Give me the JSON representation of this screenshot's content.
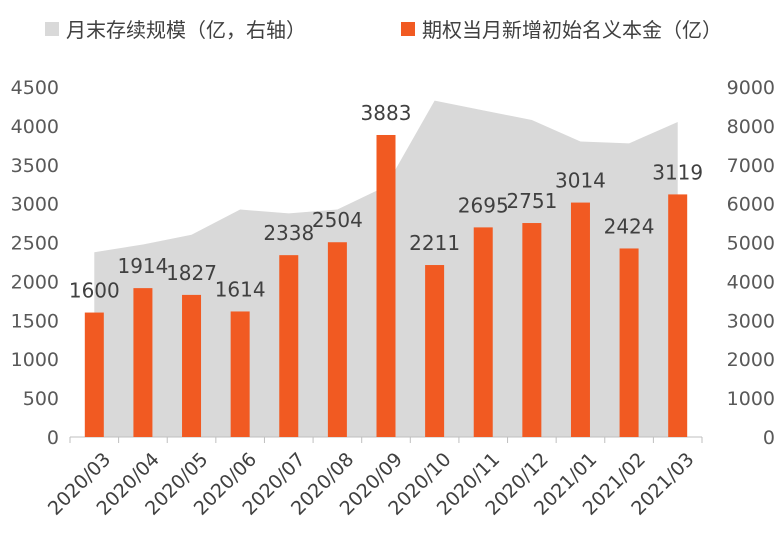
{
  "chart_data": {
    "type": "bar",
    "categories": [
      "2020/03",
      "2020/04",
      "2020/05",
      "2020/06",
      "2020/07",
      "2020/08",
      "2020/09",
      "2020/10",
      "2020/11",
      "2020/12",
      "2021/01",
      "2021/02",
      "2021/03"
    ],
    "series": [
      {
        "name": "期权当月新增初始名义本金（亿）",
        "type": "bar",
        "axis": "left",
        "color": "#F15A22",
        "values": [
          1600,
          1914,
          1827,
          1614,
          2338,
          2504,
          3883,
          2211,
          2695,
          2751,
          3014,
          2424,
          3119
        ]
      },
      {
        "name": "月末存续规模（亿，右轴）",
        "type": "area",
        "axis": "right",
        "color": "#D9D9D9",
        "values": [
          4750,
          4950,
          5200,
          5850,
          5750,
          5850,
          6450,
          8650,
          8400,
          8150,
          7600,
          7550,
          8100
        ]
      }
    ],
    "y_left": {
      "ticks": [
        "0",
        "500",
        "1000",
        "1500",
        "2000",
        "2500",
        "3000",
        "3500",
        "4000",
        "4500"
      ],
      "range": [
        0,
        4500
      ]
    },
    "y_right": {
      "ticks": [
        "0",
        "1000",
        "2000",
        "3000",
        "4000",
        "5000",
        "6000",
        "7000",
        "8000",
        "9000"
      ],
      "range": [
        0,
        9000
      ]
    },
    "grid": false,
    "legend_position": "top"
  }
}
